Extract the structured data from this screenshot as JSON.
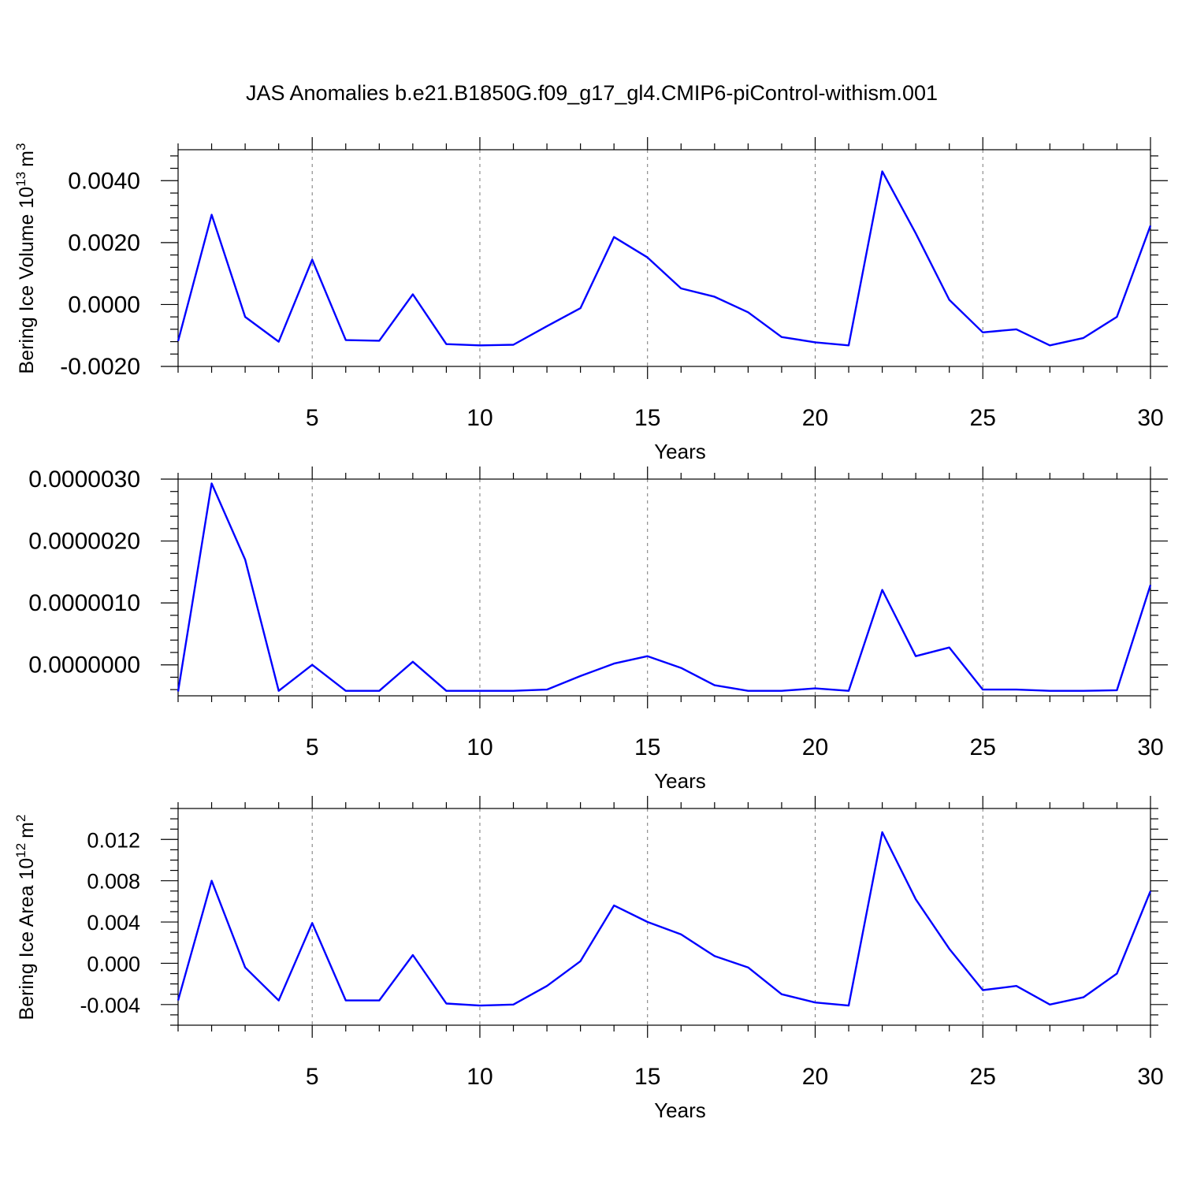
{
  "title": "JAS Anomalies b.e21.B1850G.f09_g17_gl4.CMIP6-piControl-withism.001",
  "colors": {
    "line": "#0000ff",
    "axis": "#000000",
    "grid": "#777777"
  },
  "chart_data": [
    {
      "type": "line",
      "xlabel": "Years",
      "ylabel": "Bering Ice Volume 10",
      "ylabel_exponent": "13",
      "ylabel_unit": "m",
      "ylabel_unit_exponent": "3",
      "xlim": [
        1,
        30
      ],
      "ylim": [
        -0.002,
        0.005
      ],
      "x_major_ticks": [
        5,
        10,
        15,
        20,
        25,
        30
      ],
      "x_tick_labels": [
        "5",
        "10",
        "15",
        "20",
        "25",
        "30"
      ],
      "y_major_ticks": [
        -0.002,
        0.0,
        0.002,
        0.004
      ],
      "y_tick_labels": [
        "-0.0020",
        "0.0000",
        "0.0020",
        "0.0040"
      ],
      "y_minor_step": 0.0004,
      "grid": "vertical dashed at major x ticks",
      "x": [
        1,
        2,
        3,
        4,
        5,
        6,
        7,
        8,
        9,
        10,
        11,
        12,
        13,
        14,
        15,
        16,
        17,
        18,
        19,
        20,
        21,
        22,
        23,
        24,
        25,
        26,
        27,
        28,
        29,
        30
      ],
      "series": [
        {
          "values": [
            -0.00118,
            0.0029,
            -0.0004,
            -0.0012,
            0.00145,
            -0.00115,
            -0.00117,
            0.00033,
            -0.00128,
            -0.00132,
            -0.0013,
            -0.0007,
            -0.00012,
            0.00218,
            0.00152,
            0.00052,
            0.00025,
            -0.00025,
            -0.00105,
            -0.00122,
            -0.00132,
            0.0043,
            0.0023,
            0.00015,
            -0.0009,
            -0.0008,
            -0.00132,
            -0.00108,
            -0.0004,
            0.00255
          ]
        }
      ]
    },
    {
      "type": "line",
      "xlabel": "Years",
      "ylabel": "",
      "xlim": [
        1,
        30
      ],
      "ylim": [
        -5e-07,
        3e-06
      ],
      "x_major_ticks": [
        5,
        10,
        15,
        20,
        25,
        30
      ],
      "x_tick_labels": [
        "5",
        "10",
        "15",
        "20",
        "25",
        "30"
      ],
      "y_major_ticks": [
        0.0,
        1e-06,
        2e-06,
        3e-06
      ],
      "y_tick_labels": [
        "0.0000000",
        "0.0000010",
        "0.0000020",
        "0.0000030"
      ],
      "y_minor_step": 2e-07,
      "grid": "vertical dashed at major x ticks",
      "x": [
        1,
        2,
        3,
        4,
        5,
        6,
        7,
        8,
        9,
        10,
        11,
        12,
        13,
        14,
        15,
        16,
        17,
        18,
        19,
        20,
        21,
        22,
        23,
        24,
        25,
        26,
        27,
        28,
        29,
        30
      ],
      "series": [
        {
          "values": [
            -4.3e-07,
            2.93e-06,
            1.7e-06,
            -4.2e-07,
            0.0,
            -4.2e-07,
            -4.2e-07,
            5e-08,
            -4.2e-07,
            -4.2e-07,
            -4.2e-07,
            -4e-07,
            -1.8e-07,
            2e-08,
            1.4e-07,
            -5e-08,
            -3.3e-07,
            -4.2e-07,
            -4.2e-07,
            -3.8e-07,
            -4.2e-07,
            1.21e-06,
            1.4e-07,
            2.8e-07,
            -4e-07,
            -4e-07,
            -4.2e-07,
            -4.2e-07,
            -4.1e-07,
            1.29e-06
          ]
        }
      ]
    },
    {
      "type": "line",
      "xlabel": "Years",
      "ylabel": "Bering Ice Area 10",
      "ylabel_exponent": "12",
      "ylabel_unit": "m",
      "ylabel_unit_exponent": "2",
      "xlim": [
        1,
        30
      ],
      "ylim": [
        -0.006,
        0.015
      ],
      "x_major_ticks": [
        5,
        10,
        15,
        20,
        25,
        30
      ],
      "x_tick_labels": [
        "5",
        "10",
        "15",
        "20",
        "25",
        "30"
      ],
      "y_major_ticks": [
        -0.004,
        0.0,
        0.004,
        0.008,
        0.012
      ],
      "y_tick_labels": [
        "-0.004",
        "0.000",
        "0.004",
        "0.008",
        "0.012"
      ],
      "y_minor_step": 0.001,
      "grid": "vertical dashed at major x ticks",
      "x": [
        1,
        2,
        3,
        4,
        5,
        6,
        7,
        8,
        9,
        10,
        11,
        12,
        13,
        14,
        15,
        16,
        17,
        18,
        19,
        20,
        21,
        22,
        23,
        24,
        25,
        26,
        27,
        28,
        29,
        30
      ],
      "series": [
        {
          "values": [
            -0.0036,
            0.008,
            -0.0004,
            -0.0036,
            0.0039,
            -0.0036,
            -0.0036,
            0.0008,
            -0.0039,
            -0.0041,
            -0.004,
            -0.0022,
            0.0002,
            0.0056,
            0.004,
            0.0028,
            0.0007,
            -0.0004,
            -0.003,
            -0.0038,
            -0.0041,
            0.0127,
            0.0062,
            0.0014,
            -0.0026,
            -0.0022,
            -0.004,
            -0.0033,
            -0.001,
            0.007
          ]
        }
      ]
    }
  ]
}
